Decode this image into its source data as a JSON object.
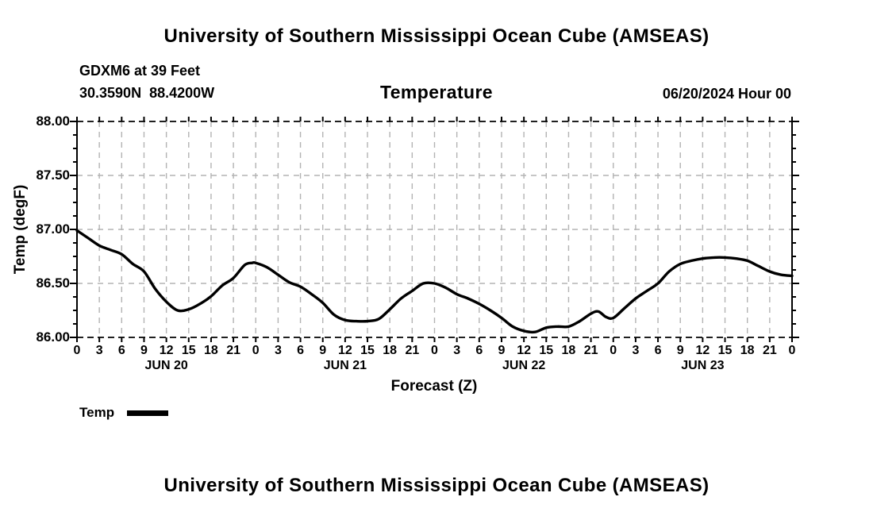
{
  "titles": {
    "top": "University of Southern Mississippi Ocean Cube (AMSEAS)",
    "bottom": "University of Southern Mississippi Ocean Cube (AMSEAS)"
  },
  "header": {
    "station": "GDXM6 at 39 Feet",
    "coordinates": "30.3590N  88.4200W",
    "plot_title": "Temperature",
    "run_time": "06/20/2024 Hour 00"
  },
  "legend": {
    "label": "Temp",
    "color": "#000000"
  },
  "colors": {
    "grid": "#b3b3b3",
    "axis": "#000000",
    "background": "#ffffff"
  },
  "chart_data": {
    "type": "line",
    "title": "Temperature",
    "xlabel": "Forecast (Z)",
    "ylabel": "Temp (degF)",
    "x_unit": "hours (Z)",
    "xlim_hours": [
      0,
      96
    ],
    "ylim": [
      86.0,
      88.0
    ],
    "grid": true,
    "legend_position": "bottom-left",
    "y_ticks": [
      86.0,
      86.5,
      87.0,
      87.5,
      88.0
    ],
    "y_tick_labels": [
      "86.00",
      "86.50",
      "87.00",
      "87.50",
      "88.00"
    ],
    "x_tick_step_hours": 3,
    "x_tick_labels": [
      "0",
      "3",
      "6",
      "9",
      "12",
      "15",
      "18",
      "21",
      "0",
      "3",
      "6",
      "9",
      "12",
      "15",
      "18",
      "21",
      "0",
      "3",
      "6",
      "9",
      "12",
      "15",
      "18",
      "21",
      "0",
      "3",
      "6",
      "9",
      "12",
      "15",
      "18",
      "21",
      "0"
    ],
    "day_labels": [
      {
        "label": "JUN 20",
        "center_hour": 12
      },
      {
        "label": "JUN 21",
        "center_hour": 36
      },
      {
        "label": "JUN 22",
        "center_hour": 60
      },
      {
        "label": "JUN 23",
        "center_hour": 84
      }
    ],
    "series": [
      {
        "name": "Temp",
        "color": "#000000",
        "points": [
          [
            0,
            86.99
          ],
          [
            1.5,
            86.92
          ],
          [
            3,
            86.85
          ],
          [
            4.5,
            86.81
          ],
          [
            6,
            86.77
          ],
          [
            7.5,
            86.68
          ],
          [
            9,
            86.61
          ],
          [
            10.5,
            86.45
          ],
          [
            12,
            86.33
          ],
          [
            13.5,
            86.25
          ],
          [
            15,
            86.26
          ],
          [
            16.5,
            86.31
          ],
          [
            18,
            86.38
          ],
          [
            19.5,
            86.48
          ],
          [
            21,
            86.55
          ],
          [
            22.5,
            86.67
          ],
          [
            23.5,
            86.69
          ],
          [
            24,
            86.69
          ],
          [
            25.5,
            86.65
          ],
          [
            27,
            86.58
          ],
          [
            28.5,
            86.51
          ],
          [
            30,
            86.47
          ],
          [
            31.5,
            86.4
          ],
          [
            33,
            86.32
          ],
          [
            34.5,
            86.21
          ],
          [
            36,
            86.16
          ],
          [
            37.5,
            86.15
          ],
          [
            39,
            86.15
          ],
          [
            40.5,
            86.17
          ],
          [
            42,
            86.26
          ],
          [
            43.5,
            86.36
          ],
          [
            45,
            86.43
          ],
          [
            46.5,
            86.5
          ],
          [
            48,
            86.5
          ],
          [
            49.5,
            86.46
          ],
          [
            51,
            86.4
          ],
          [
            52.5,
            86.36
          ],
          [
            54,
            86.31
          ],
          [
            55.5,
            86.25
          ],
          [
            57,
            86.18
          ],
          [
            58.5,
            86.1
          ],
          [
            60,
            86.06
          ],
          [
            61.5,
            86.05
          ],
          [
            63,
            86.09
          ],
          [
            64.5,
            86.1
          ],
          [
            66,
            86.1
          ],
          [
            67.5,
            86.15
          ],
          [
            69,
            86.22
          ],
          [
            70,
            86.24
          ],
          [
            71,
            86.19
          ],
          [
            72,
            86.18
          ],
          [
            73.5,
            86.27
          ],
          [
            75,
            86.36
          ],
          [
            76.5,
            86.43
          ],
          [
            78,
            86.5
          ],
          [
            79.5,
            86.61
          ],
          [
            81,
            86.68
          ],
          [
            82.5,
            86.71
          ],
          [
            84,
            86.73
          ],
          [
            85.5,
            86.74
          ],
          [
            87,
            86.74
          ],
          [
            88.5,
            86.73
          ],
          [
            90,
            86.71
          ],
          [
            91.5,
            86.66
          ],
          [
            93,
            86.61
          ],
          [
            94.5,
            86.58
          ],
          [
            96,
            86.57
          ]
        ]
      }
    ]
  }
}
